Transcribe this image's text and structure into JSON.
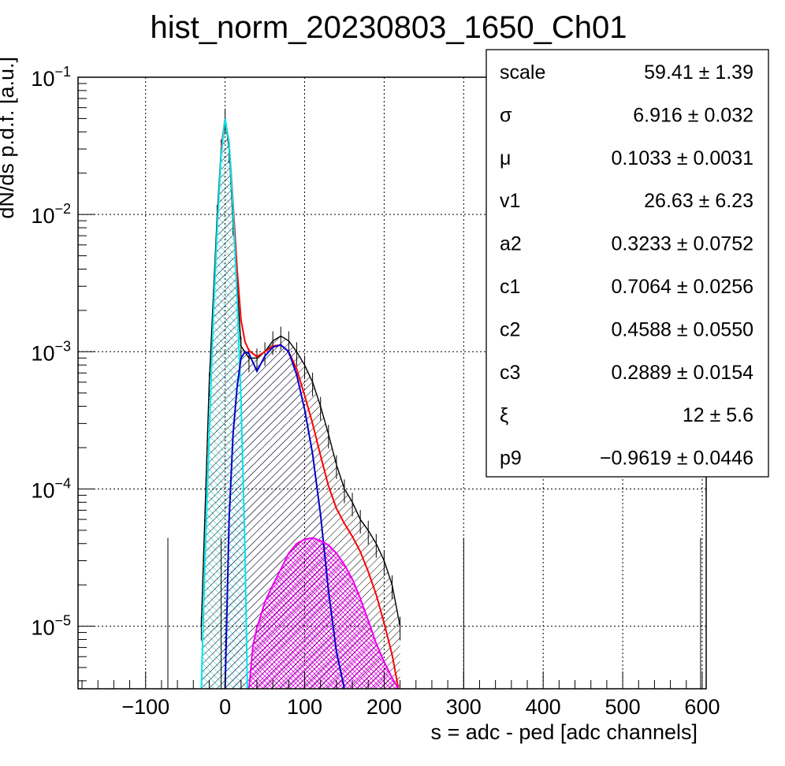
{
  "chart_data": {
    "type": "line",
    "title": "hist_norm_20230803_1650_Ch01",
    "xlabel": "s = adc - ped [adc channels]",
    "ylabel": "dN/ds p.d.f. [a.u.]",
    "xlim": [
      -185,
      605
    ],
    "ylim": [
      3.5e-06,
      0.1
    ],
    "yscale": "log",
    "grid": true,
    "x_ticks": [
      -100,
      0,
      100,
      200,
      300,
      400,
      500,
      600
    ],
    "x_tick_labels": [
      "−100",
      "0",
      "100",
      "200",
      "300",
      "400",
      "500",
      "600"
    ],
    "y_tick_exponents": [
      "−1",
      "−2",
      "−3",
      "−4",
      "−5"
    ],
    "y_tick_values": [
      0.1,
      0.01,
      0.001,
      0.0001,
      1e-05
    ],
    "y_tick_base": "10",
    "series": [
      {
        "color": "#000000",
        "style": "histogram-hatched",
        "x": [
          -30,
          -20,
          -10,
          -5,
          0,
          5,
          10,
          20,
          30,
          40,
          50,
          60,
          70,
          80,
          90,
          100,
          110,
          120,
          130,
          140,
          150,
          160,
          170,
          180,
          190,
          200,
          210,
          220
        ],
        "y": [
          1e-05,
          0.0006,
          0.01,
          0.03,
          0.05,
          0.03,
          0.009,
          0.0011,
          0.0009,
          0.0009,
          0.001,
          0.0012,
          0.0013,
          0.0012,
          0.001,
          0.0008,
          0.0006,
          0.0004,
          0.00025,
          0.00015,
          0.0001,
          8e-05,
          6e-05,
          5e-05,
          4e-05,
          3e-05,
          2e-05,
          1e-05
        ]
      },
      {
        "color": "#ff0000",
        "style": "line",
        "x": [
          -5,
          0,
          5,
          10,
          15,
          20,
          25,
          30,
          40,
          50,
          60,
          70,
          80,
          90,
          100,
          110,
          120,
          130,
          140,
          150,
          160,
          170,
          180,
          190,
          200,
          210,
          218
        ],
        "y": [
          0.03,
          0.05,
          0.033,
          0.012,
          0.004,
          0.0017,
          0.00118,
          0.00102,
          0.00092,
          0.001,
          0.0011,
          0.00112,
          0.001,
          0.00075,
          0.00048,
          0.0003,
          0.000175,
          0.000105,
          7.2e-05,
          5.6e-05,
          4.5e-05,
          3.5e-05,
          2.5e-05,
          1.7e-05,
          1.05e-05,
          6.2e-06,
          3.5e-06
        ]
      },
      {
        "color": "#00e5ee",
        "style": "line-hatched",
        "x": [
          -30,
          -25,
          -20,
          -15,
          -10,
          -5,
          0,
          5,
          10,
          15,
          20,
          25,
          28
        ],
        "y": [
          3.5e-06,
          3.5e-05,
          0.00025,
          0.0017,
          0.008,
          0.027,
          0.05,
          0.033,
          0.011,
          0.0025,
          0.00045,
          3.5e-05,
          3.5e-06
        ]
      },
      {
        "color": "#0000cc",
        "style": "line-hatched",
        "x": [
          0,
          5,
          10,
          15,
          20,
          25,
          30,
          40,
          50,
          60,
          70,
          80,
          90,
          100,
          110,
          120,
          130,
          140,
          150
        ],
        "y": [
          3.5e-06,
          6e-05,
          0.00025,
          0.00055,
          0.0009,
          0.001,
          0.00097,
          0.00072,
          0.00093,
          0.00108,
          0.00112,
          0.001,
          0.00068,
          0.00038,
          0.00018,
          6.5e-05,
          1.8e-05,
          6.5e-06,
          3.5e-06
        ]
      },
      {
        "color": "#ee00ee",
        "style": "line-hatched",
        "x": [
          30,
          35,
          40,
          45,
          50,
          60,
          70,
          80,
          90,
          100,
          110,
          120,
          130,
          140,
          150,
          160,
          170,
          180,
          190,
          200,
          210,
          218
        ],
        "y": [
          3.5e-06,
          7.2e-06,
          9.8e-06,
          1.2e-05,
          1.5e-05,
          2e-05,
          2.6e-05,
          3.4e-05,
          4e-05,
          4.3e-05,
          4.4e-05,
          4.2e-05,
          3.9e-05,
          3.4e-05,
          2.8e-05,
          2.2e-05,
          1.6e-05,
          1.1e-05,
          7.5e-06,
          5.5e-06,
          4.2e-06,
          3.5e-06
        ]
      }
    ],
    "stats_box": [
      {
        "name": "scale",
        "value": "59.41 ± 1.39"
      },
      {
        "name": "σ",
        "value": "6.916 ± 0.032"
      },
      {
        "name": "μ",
        "value": "0.1033 ± 0.0031"
      },
      {
        "name": "v1",
        "value": "26.63 ± 6.23"
      },
      {
        "name": "a2",
        "value": "0.3233 ± 0.0752"
      },
      {
        "name": "c1",
        "value": "0.7064 ± 0.0256"
      },
      {
        "name": "c2",
        "value": "0.4588 ± 0.0550"
      },
      {
        "name": "c3",
        "value": "0.2889 ± 0.0154"
      },
      {
        "name": "ξ",
        "value": "12 ± 5.6"
      },
      {
        "name": "p9",
        "value": "−0.9619 ± 0.0446"
      }
    ]
  }
}
